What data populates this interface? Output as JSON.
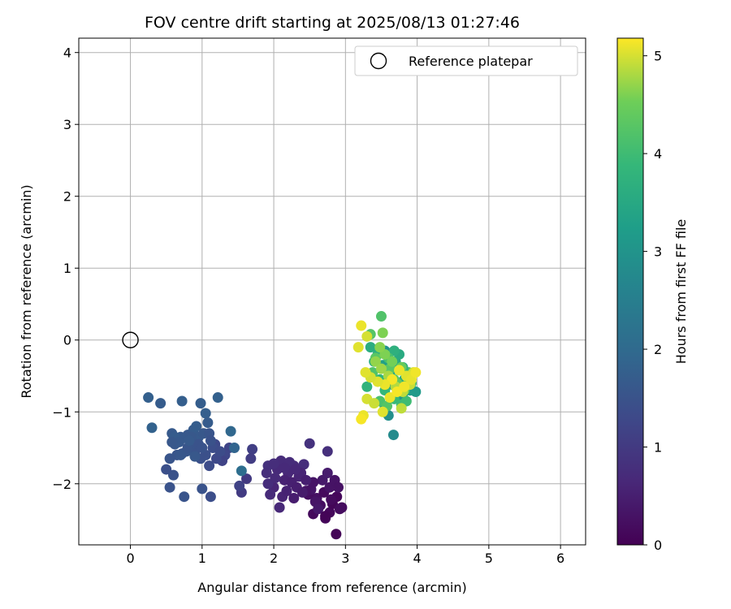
{
  "chart_data": {
    "type": "scatter",
    "title": "FOV centre drift starting at 2025/08/13 01:27:46",
    "xlabel": "Angular distance from reference (arcmin)",
    "ylabel": "Rotation from reference (arcmin)",
    "xlim": [
      -0.72,
      6.35
    ],
    "ylim": [
      -2.85,
      4.2
    ],
    "x_ticks": [
      0,
      1,
      2,
      3,
      4,
      5,
      6
    ],
    "y_ticks": [
      -2,
      -1,
      0,
      1,
      2,
      3,
      4
    ],
    "grid": true,
    "legend": {
      "position": "top-right",
      "entries": [
        "Reference platepar"
      ]
    },
    "reference_point": {
      "name": "Reference platepar",
      "x": 0,
      "y": 0
    },
    "colorbar": {
      "label": "Hours from first FF file",
      "colormap": "viridis",
      "range": [
        0,
        5.18
      ],
      "ticks": [
        0,
        1,
        2,
        3,
        4,
        5
      ]
    },
    "points": [
      [
        2.87,
        -2.7,
        0.05
      ],
      [
        2.72,
        -2.48,
        0.1
      ],
      [
        2.55,
        -2.42,
        0.15
      ],
      [
        2.78,
        -2.4,
        0.12
      ],
      [
        2.65,
        -2.3,
        0.2
      ],
      [
        2.95,
        -2.33,
        0.18
      ],
      [
        2.82,
        -2.28,
        0.08
      ],
      [
        2.6,
        -2.2,
        0.25
      ],
      [
        2.48,
        -2.15,
        0.22
      ],
      [
        2.7,
        -2.12,
        0.14
      ],
      [
        2.88,
        -2.18,
        0.1
      ],
      [
        2.78,
        -2.05,
        0.3
      ],
      [
        2.52,
        -2.08,
        0.35
      ],
      [
        2.68,
        -1.95,
        0.4
      ],
      [
        2.85,
        -1.95,
        0.3
      ],
      [
        2.75,
        -1.85,
        0.45
      ],
      [
        2.9,
        -2.05,
        0.28
      ],
      [
        2.58,
        -2.25,
        0.33
      ],
      [
        2.45,
        -2.1,
        0.3
      ],
      [
        2.62,
        -2.35,
        0.38
      ],
      [
        2.8,
        -2.22,
        0.16
      ],
      [
        2.72,
        -2.45,
        0.06
      ],
      [
        2.92,
        -2.35,
        0.2
      ],
      [
        2.55,
        -1.98,
        0.32
      ],
      [
        2.5,
        -1.44,
        0.85
      ],
      [
        2.75,
        -1.55,
        0.8
      ],
      [
        2.42,
        -1.73,
        0.75
      ],
      [
        2.35,
        -1.9,
        0.6
      ],
      [
        2.28,
        -1.75,
        0.7
      ],
      [
        2.2,
        -1.85,
        0.65
      ],
      [
        2.1,
        -1.68,
        0.72
      ],
      [
        2.05,
        -1.8,
        0.68
      ],
      [
        2.15,
        -1.95,
        0.55
      ],
      [
        2.0,
        -2.05,
        0.62
      ],
      [
        2.12,
        -2.18,
        0.58
      ],
      [
        2.08,
        -2.33,
        0.66
      ],
      [
        1.95,
        -2.15,
        0.7
      ],
      [
        1.92,
        -1.75,
        0.82
      ],
      [
        1.9,
        -1.85,
        0.78
      ],
      [
        1.92,
        -2.0,
        0.75
      ],
      [
        2.25,
        -1.98,
        0.52
      ],
      [
        2.32,
        -2.05,
        0.48
      ],
      [
        2.18,
        -2.1,
        0.55
      ],
      [
        2.38,
        -1.85,
        0.6
      ],
      [
        2.22,
        -1.7,
        0.72
      ],
      [
        2.45,
        -1.95,
        0.5
      ],
      [
        2.3,
        -1.8,
        0.64
      ],
      [
        2.02,
        -1.92,
        0.7
      ],
      [
        2.4,
        -2.12,
        0.44
      ],
      [
        2.28,
        -2.2,
        0.46
      ],
      [
        2.0,
        -1.72,
        0.76
      ],
      [
        2.15,
        -1.78,
        0.68
      ],
      [
        1.7,
        -1.52,
        1.1
      ],
      [
        1.62,
        -1.93,
        1.0
      ],
      [
        1.55,
        -2.12,
        1.02
      ],
      [
        1.52,
        -2.03,
        1.15
      ],
      [
        1.68,
        -1.65,
        1.05
      ],
      [
        1.38,
        -1.5,
        1.2
      ],
      [
        1.32,
        -1.6,
        1.25
      ],
      [
        1.28,
        -1.68,
        1.18
      ],
      [
        1.18,
        -1.45,
        1.3
      ],
      [
        1.1,
        -1.75,
        1.35
      ],
      [
        1.12,
        -2.18,
        1.4
      ],
      [
        1.0,
        -2.07,
        1.5
      ],
      [
        0.98,
        -1.65,
        1.45
      ],
      [
        0.9,
        -1.55,
        1.5
      ],
      [
        0.85,
        -1.45,
        1.55
      ],
      [
        0.8,
        -1.32,
        1.6
      ],
      [
        0.78,
        -1.55,
        1.58
      ],
      [
        0.75,
        -2.18,
        1.52
      ],
      [
        0.7,
        -1.35,
        1.62
      ],
      [
        0.65,
        -1.6,
        1.55
      ],
      [
        0.62,
        -1.45,
        1.6
      ],
      [
        0.6,
        -1.88,
        1.48
      ],
      [
        0.55,
        -2.05,
        1.5
      ],
      [
        0.5,
        -1.8,
        1.45
      ],
      [
        0.58,
        -1.3,
        1.65
      ],
      [
        0.62,
        -1.35,
        1.7
      ],
      [
        0.68,
        -1.42,
        1.62
      ],
      [
        0.72,
        -1.58,
        1.55
      ],
      [
        0.88,
        -1.25,
        1.68
      ],
      [
        0.92,
        -1.2,
        1.72
      ],
      [
        0.95,
        -1.35,
        1.65
      ],
      [
        1.02,
        -1.3,
        1.6
      ],
      [
        1.05,
        -1.02,
        1.75
      ],
      [
        1.08,
        -1.15,
        1.7
      ],
      [
        1.1,
        -1.3,
        1.55
      ],
      [
        1.15,
        -1.5,
        1.4
      ],
      [
        1.2,
        -1.65,
        1.3
      ],
      [
        1.25,
        -1.55,
        1.35
      ],
      [
        1.05,
        -1.6,
        1.45
      ],
      [
        0.95,
        -1.45,
        1.5
      ],
      [
        0.85,
        -1.35,
        1.6
      ],
      [
        0.8,
        -1.5,
        1.55
      ],
      [
        0.7,
        -1.6,
        1.58
      ],
      [
        0.55,
        -1.65,
        1.55
      ],
      [
        0.58,
        -1.42,
        1.6
      ],
      [
        0.98,
        -0.88,
        1.72
      ],
      [
        0.72,
        -0.85,
        1.75
      ],
      [
        0.42,
        -0.88,
        1.7
      ],
      [
        0.25,
        -0.8,
        1.78
      ],
      [
        0.3,
        -1.22,
        1.82
      ],
      [
        0.9,
        -1.62,
        1.6
      ],
      [
        1.0,
        -1.5,
        1.5
      ],
      [
        1.12,
        -1.4,
        1.48
      ],
      [
        1.4,
        -1.27,
        1.95
      ],
      [
        1.45,
        -1.5,
        1.88
      ],
      [
        1.55,
        -1.82,
        2.1
      ],
      [
        1.22,
        -0.8,
        1.8
      ],
      [
        0.82,
        -1.4,
        1.65
      ],
      [
        3.67,
        -1.32,
        2.8
      ],
      [
        3.6,
        -1.05,
        2.9
      ],
      [
        3.55,
        -0.92,
        3.0
      ],
      [
        3.72,
        -0.8,
        2.95
      ],
      [
        3.8,
        -0.75,
        3.05
      ],
      [
        3.65,
        -0.62,
        3.1
      ],
      [
        3.9,
        -0.7,
        3.2
      ],
      [
        3.98,
        -0.72,
        3.15
      ],
      [
        3.55,
        -0.15,
        2.95
      ],
      [
        3.52,
        -0.35,
        3.3
      ],
      [
        3.62,
        -0.48,
        3.4
      ],
      [
        3.7,
        -0.3,
        3.5
      ],
      [
        3.75,
        -0.42,
        3.45
      ],
      [
        3.82,
        -0.55,
        3.55
      ],
      [
        3.45,
        -0.2,
        3.65
      ],
      [
        3.4,
        -0.3,
        3.7
      ],
      [
        3.35,
        -0.1,
        3.6
      ],
      [
        3.3,
        -0.65,
        3.75
      ],
      [
        3.48,
        -0.55,
        3.8
      ],
      [
        3.55,
        -0.7,
        3.85
      ],
      [
        3.68,
        -0.82,
        3.9
      ],
      [
        3.78,
        -0.9,
        3.95
      ],
      [
        3.85,
        -0.85,
        4.0
      ],
      [
        3.92,
        -0.6,
        4.05
      ],
      [
        3.88,
        -0.45,
        4.1
      ],
      [
        3.8,
        -0.38,
        3.65
      ],
      [
        3.75,
        -0.2,
        3.55
      ],
      [
        3.68,
        -0.15,
        3.7
      ],
      [
        3.6,
        -0.25,
        4.1
      ],
      [
        3.5,
        0.33,
        4.2
      ],
      [
        3.35,
        0.08,
        4.25
      ],
      [
        3.42,
        -0.25,
        4.3
      ],
      [
        3.38,
        -0.45,
        4.2
      ],
      [
        3.48,
        -0.85,
        4.15
      ],
      [
        3.58,
        -0.92,
        4.25
      ],
      [
        3.68,
        -0.55,
        4.35
      ],
      [
        3.62,
        -0.4,
        4.3
      ],
      [
        3.72,
        -0.6,
        4.4
      ],
      [
        3.82,
        -0.7,
        4.45
      ],
      [
        3.88,
        -0.55,
        4.5
      ],
      [
        3.92,
        -0.48,
        4.55
      ],
      [
        3.78,
        -0.38,
        4.45
      ],
      [
        3.65,
        -0.3,
        4.55
      ],
      [
        3.55,
        -0.2,
        4.6
      ],
      [
        3.48,
        -0.1,
        4.65
      ],
      [
        3.42,
        -0.3,
        4.7
      ],
      [
        3.5,
        -0.4,
        4.75
      ],
      [
        3.6,
        -0.5,
        4.8
      ],
      [
        3.7,
        -0.65,
        4.85
      ],
      [
        3.8,
        -0.72,
        4.9
      ],
      [
        3.9,
        -0.62,
        4.95
      ],
      [
        3.95,
        -0.45,
        5.0
      ],
      [
        3.85,
        -0.5,
        5.05
      ],
      [
        3.75,
        -0.42,
        5.1
      ],
      [
        3.65,
        -0.55,
        5.15
      ],
      [
        3.55,
        -0.62,
        5.1
      ],
      [
        3.45,
        -0.58,
        5.05
      ],
      [
        3.35,
        -0.52,
        5.0
      ],
      [
        3.28,
        -0.45,
        5.05
      ],
      [
        3.22,
        0.2,
        5.1
      ],
      [
        3.3,
        0.05,
        5.0
      ],
      [
        3.18,
        -0.1,
        5.05
      ],
      [
        3.25,
        -1.05,
        5.1
      ],
      [
        3.22,
        -1.1,
        5.15
      ],
      [
        3.3,
        -0.82,
        5.0
      ],
      [
        3.4,
        -0.88,
        4.95
      ],
      [
        3.52,
        -1.0,
        5.05
      ],
      [
        3.62,
        -0.8,
        5.1
      ],
      [
        3.72,
        -0.72,
        5.15
      ],
      [
        3.82,
        -0.65,
        5.12
      ],
      [
        3.92,
        -0.55,
        5.08
      ],
      [
        3.98,
        -0.45,
        5.12
      ],
      [
        3.78,
        -0.95,
        4.9
      ],
      [
        3.52,
        0.1,
        4.6
      ]
    ]
  }
}
